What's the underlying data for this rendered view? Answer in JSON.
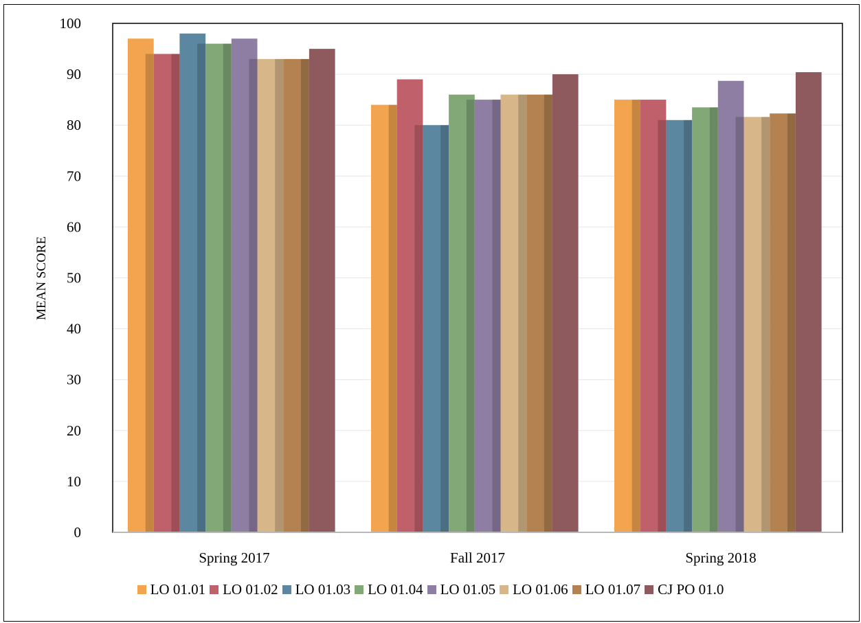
{
  "chart_data": {
    "type": "bar",
    "ylabel": "MEAN SCORE",
    "xlabel": "",
    "ylim": [
      0,
      100
    ],
    "yticks": [
      "0",
      "10",
      "20",
      "30",
      "40",
      "50",
      "60",
      "70",
      "80",
      "90",
      "100"
    ],
    "grid": true,
    "legend_position": "bottom",
    "categories": [
      "Spring 2017",
      "Fall 2017",
      "Spring 2018"
    ],
    "series": [
      {
        "name": "LO 01.01",
        "color": "#F2A44E",
        "values": [
          97,
          84,
          85
        ]
      },
      {
        "name": "LO 01.02",
        "color": "#C0606A",
        "values": [
          94,
          89,
          85
        ]
      },
      {
        "name": "LO 01.03",
        "color": "#5C87A0",
        "values": [
          98,
          80,
          81
        ]
      },
      {
        "name": "LO 01.04",
        "color": "#82A878",
        "values": [
          96,
          86,
          83.5
        ]
      },
      {
        "name": "LO 01.05",
        "color": "#8F7EA3",
        "values": [
          97,
          85,
          88.7
        ]
      },
      {
        "name": "LO 01.06",
        "color": "#D7B78A",
        "values": [
          93,
          86,
          81.6
        ]
      },
      {
        "name": "LO 01.07",
        "color": "#B38250",
        "values": [
          93,
          86,
          82.3
        ]
      },
      {
        "name": "CJ PO 01.0",
        "color": "#8E5A5E",
        "values": [
          95,
          90,
          90.4
        ]
      }
    ]
  }
}
